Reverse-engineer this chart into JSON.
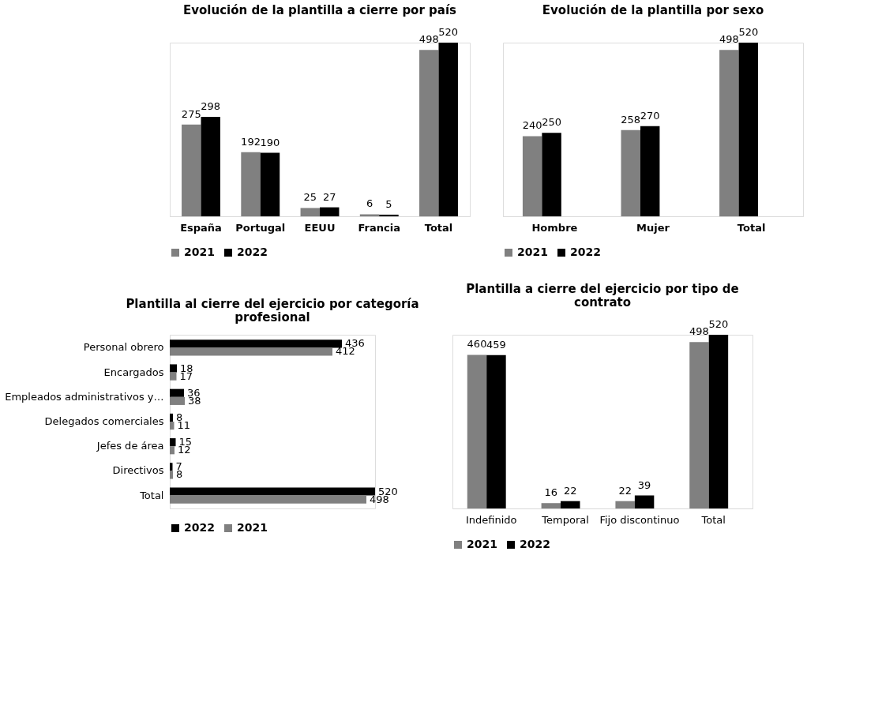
{
  "chart_data": [
    {
      "type": "bar",
      "title": "Evolución de la plantilla a cierre por país",
      "categories": [
        "España",
        "Portugal",
        "EEUU",
        "Francia",
        "Total"
      ],
      "series": [
        {
          "name": "2021",
          "color": "#808080",
          "values": [
            275,
            192,
            25,
            6,
            498
          ]
        },
        {
          "name": "2022",
          "color": "#000000",
          "values": [
            298,
            190,
            27,
            5,
            520
          ]
        }
      ],
      "data_labels": true,
      "legend": "bottom"
    },
    {
      "type": "bar",
      "title": "Evolución de la plantilla por sexo",
      "categories": [
        "Hombre",
        "Mujer",
        "Total"
      ],
      "series": [
        {
          "name": "2021",
          "color": "#808080",
          "values": [
            240,
            258,
            498
          ]
        },
        {
          "name": "2022",
          "color": "#000000",
          "values": [
            250,
            270,
            520
          ]
        }
      ],
      "data_labels": true,
      "legend": "bottom"
    },
    {
      "type": "bar",
      "title": "Plantilla al cierre del ejercicio por categoría profesional",
      "orientation": "horizontal",
      "categories": [
        "Personal obrero",
        "Encargados",
        "Empleados administrativos y…",
        "Delegados comerciales",
        "Jefes de área",
        "Directivos",
        "Total"
      ],
      "series": [
        {
          "name": "2022",
          "color": "#000000",
          "values": [
            436,
            18,
            36,
            8,
            15,
            7,
            520
          ]
        },
        {
          "name": "2021",
          "color": "#808080",
          "values": [
            412,
            17,
            38,
            11,
            12,
            8,
            498
          ]
        }
      ],
      "data_labels": true,
      "legend": "bottom"
    },
    {
      "type": "bar",
      "title": "Plantilla a cierre del ejercicio por tipo de contrato",
      "categories": [
        "Indefinido",
        "Temporal",
        "Fijo discontinuo",
        "Total"
      ],
      "series": [
        {
          "name": "2021",
          "color": "#808080",
          "values": [
            460,
            16,
            22,
            498
          ]
        },
        {
          "name": "2022",
          "color": "#000000",
          "values": [
            459,
            22,
            39,
            520
          ]
        }
      ],
      "data_labels": true,
      "legend": "bottom"
    }
  ]
}
